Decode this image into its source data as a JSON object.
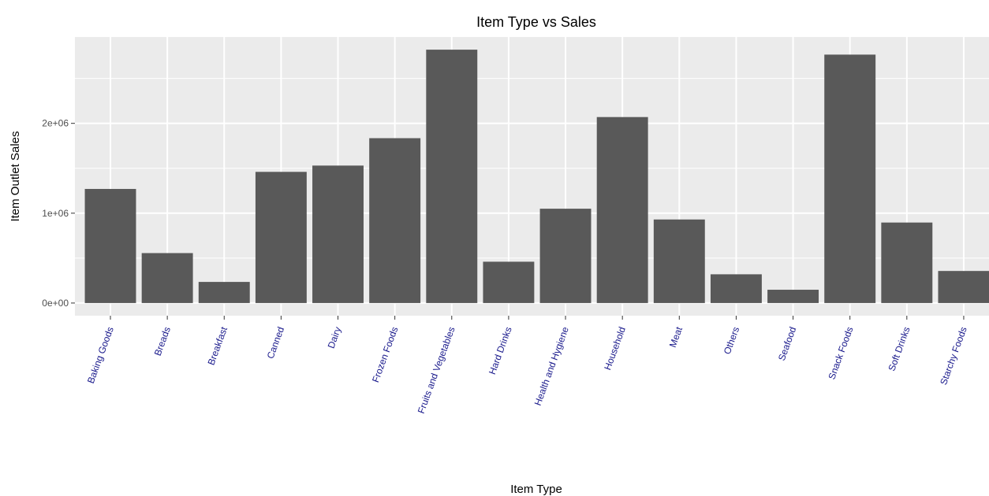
{
  "chart_data": {
    "type": "bar",
    "title": "Item Type vs Sales",
    "x_label": "Item Type",
    "y_label": "Item Outlet Sales",
    "categories": [
      "Baking Goods",
      "Breads",
      "Breakfast",
      "Canned",
      "Dairy",
      "Frozen Foods",
      "Fruits and Vegetables",
      "Hard Drinks",
      "Health and Hygiene",
      "Household",
      "Meat",
      "Others",
      "Seafood",
      "Snack Foods",
      "Soft Drinks",
      "Starchy Foods"
    ],
    "values": [
      1270000,
      556000,
      235000,
      1460000,
      1530000,
      1835000,
      2820000,
      460000,
      1050000,
      2070000,
      930000,
      320000,
      148000,
      2765000,
      896000,
      357000
    ],
    "color": "#595959",
    "category_label_color": "#1a1a8c",
    "ylim": [
      -141000,
      2961000
    ],
    "yticks": [
      {
        "value": 0,
        "label": "0e+00"
      },
      {
        "value": 1000000,
        "label": "1e+06"
      },
      {
        "value": 2000000,
        "label": "2e+06"
      }
    ],
    "grid": true
  }
}
